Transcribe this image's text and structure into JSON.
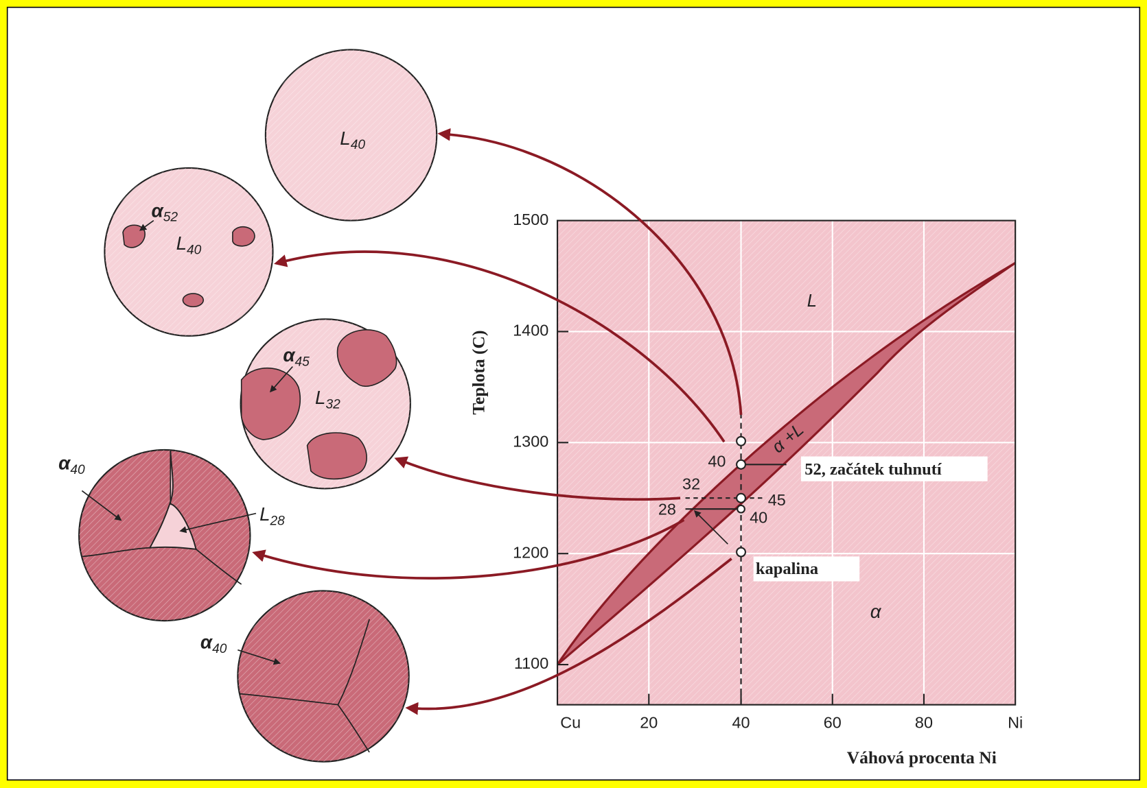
{
  "axes": {
    "y_label": "Teplota (C)",
    "x_label": "Váhová procenta Ni",
    "y_ticks": [
      "1500",
      "1400",
      "1300",
      "1200",
      "1100"
    ],
    "x_ticks": [
      "Cu",
      "20",
      "40",
      "60",
      "80",
      "Ni"
    ]
  },
  "regions": {
    "liquid": "L",
    "solid": "α",
    "two_phase": "α +L"
  },
  "composition_labels": [
    "40",
    "32",
    "28",
    "45",
    "40"
  ],
  "annotations": {
    "start": "52, začátek tuhnutí",
    "liquid": "kapalina"
  },
  "microstructures": [
    {
      "labels": [
        {
          "symbol": "L",
          "subscript": "40"
        }
      ]
    },
    {
      "labels": [
        {
          "symbol": "α",
          "subscript": "52"
        },
        {
          "symbol": "L",
          "subscript": "40"
        }
      ]
    },
    {
      "labels": [
        {
          "symbol": "α",
          "subscript": "45"
        },
        {
          "symbol": "L",
          "subscript": "32"
        }
      ]
    },
    {
      "labels": [
        {
          "symbol": "α",
          "subscript": "40"
        },
        {
          "symbol": "L",
          "subscript": "28"
        }
      ]
    },
    {
      "labels": [
        {
          "symbol": "α",
          "subscript": "40"
        }
      ]
    }
  ]
}
